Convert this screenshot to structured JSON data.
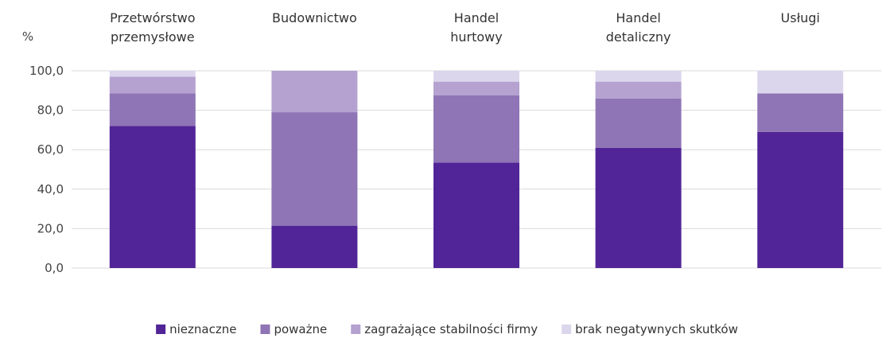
{
  "chart_data": {
    "type": "bar",
    "stacked": true,
    "ylabel": "%",
    "ylim": [
      0,
      100
    ],
    "yticks": [
      "0,0",
      "20,0",
      "40,0",
      "60,0",
      "80,0",
      "100,0"
    ],
    "grid": true,
    "legend_position": "bottom",
    "categories": [
      [
        "Przetwórstwo",
        "przemysłowe"
      ],
      [
        "Budownictwo"
      ],
      [
        "Handel",
        "hurtowy"
      ],
      [
        "Handel",
        "detaliczny"
      ],
      [
        "Usługi"
      ]
    ],
    "series": [
      {
        "name": "nieznaczne",
        "color": "#512597",
        "values": [
          72.0,
          21.5,
          53.5,
          61.0,
          69.0
        ]
      },
      {
        "name": "poważne",
        "color": "#8f75b5",
        "values": [
          16.5,
          57.5,
          34.0,
          25.0,
          19.5
        ]
      },
      {
        "name": "zagrażające stabilności firmy",
        "color": "#b5a2d0",
        "values": [
          8.5,
          21.0,
          7.0,
          8.5,
          0.0
        ]
      },
      {
        "name": "brak negatywnych skutków",
        "color": "#dcd6ec",
        "values": [
          3.0,
          0.0,
          5.5,
          5.5,
          11.5
        ]
      }
    ]
  }
}
